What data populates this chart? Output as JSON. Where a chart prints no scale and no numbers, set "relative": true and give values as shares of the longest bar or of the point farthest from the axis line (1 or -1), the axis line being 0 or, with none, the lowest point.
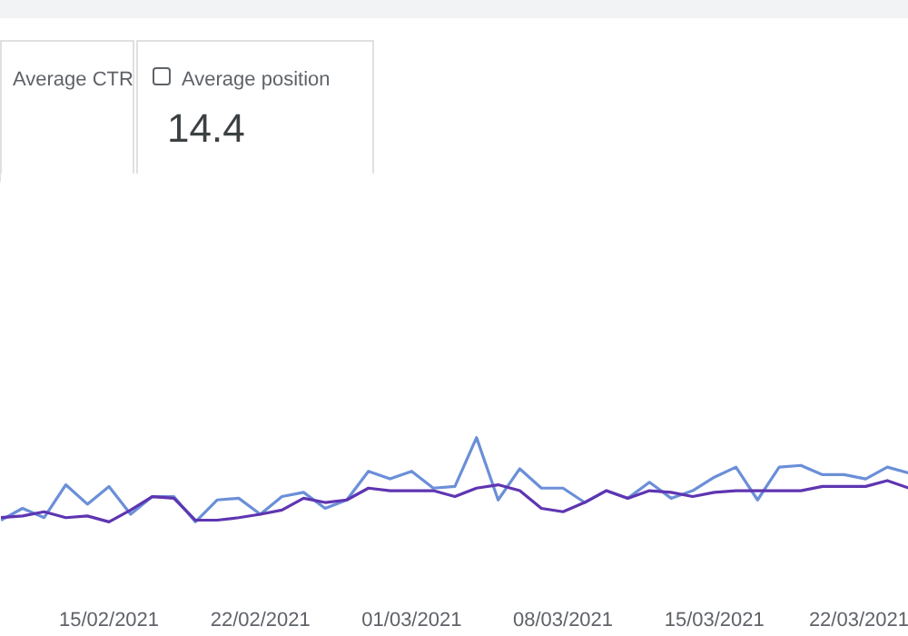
{
  "chart_data": {
    "type": "line",
    "relative": true,
    "annotations": [
      "Average CTR",
      "Average position",
      "14.4"
    ],
    "x": [
      "2021-02-10",
      "2021-02-11",
      "2021-02-12",
      "2021-02-13",
      "2021-02-14",
      "2021-02-15",
      "2021-02-16",
      "2021-02-17",
      "2021-02-18",
      "2021-02-19",
      "2021-02-20",
      "2021-02-21",
      "2021-02-22",
      "2021-02-23",
      "2021-02-24",
      "2021-02-25",
      "2021-02-26",
      "2021-02-27",
      "2021-02-28",
      "2021-03-01",
      "2021-03-02",
      "2021-03-03",
      "2021-03-04",
      "2021-03-05",
      "2021-03-06",
      "2021-03-07",
      "2021-03-08",
      "2021-03-09",
      "2021-03-10",
      "2021-03-11",
      "2021-03-12",
      "2021-03-13",
      "2021-03-14",
      "2021-03-15",
      "2021-03-16",
      "2021-03-17",
      "2021-03-18",
      "2021-03-19",
      "2021-03-20",
      "2021-03-21",
      "2021-03-22",
      "2021-03-23",
      "2021-03-24"
    ],
    "xlim": [
      "2021-02-10",
      "2021-03-24"
    ],
    "xticks": [
      {
        "value": "2021-02-15",
        "label": "15/02/2021"
      },
      {
        "value": "2021-02-22",
        "label": "22/02/2021"
      },
      {
        "value": "2021-03-01",
        "label": "01/03/2021"
      },
      {
        "value": "2021-03-08",
        "label": "08/03/2021"
      },
      {
        "value": "2021-03-15",
        "label": "15/03/2021"
      },
      {
        "value": "2021-03-22",
        "label": "22/03/2021"
      }
    ],
    "tick_labels": "x",
    "series": [
      {
        "color": "#6b8fd8",
        "values": [
          0.02,
          0.16,
          0.05,
          0.44,
          0.21,
          0.42,
          0.09,
          0.3,
          0.3,
          0,
          0.26,
          0.28,
          0.09,
          0.3,
          0.35,
          0.16,
          0.26,
          0.6,
          0.51,
          0.6,
          0.4,
          0.42,
          1,
          0.26,
          0.63,
          0.4,
          0.4,
          0.23,
          0.37,
          0.28,
          0.47,
          0.28,
          0.37,
          0.53,
          0.65,
          0.26,
          0.65,
          0.67,
          0.56,
          0.56,
          0.51,
          0.65,
          0.58
        ]
      },
      {
        "color": "#5e35b1",
        "values": [
          0.05,
          0.07,
          0.12,
          0.05,
          0.07,
          0,
          0.14,
          0.3,
          0.28,
          0.02,
          0.02,
          0.05,
          0.09,
          0.14,
          0.28,
          0.23,
          0.26,
          0.4,
          0.37,
          0.37,
          0.37,
          0.3,
          0.4,
          0.44,
          0.37,
          0.16,
          0.12,
          0.23,
          0.37,
          0.28,
          0.37,
          0.35,
          0.3,
          0.35,
          0.37,
          0.37,
          0.37,
          0.37,
          0.42,
          0.42,
          0.42,
          0.49,
          0.4
        ]
      }
    ]
  }
}
